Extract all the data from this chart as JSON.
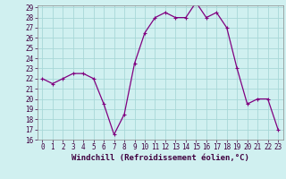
{
  "x": [
    0,
    1,
    2,
    3,
    4,
    5,
    6,
    7,
    8,
    9,
    10,
    11,
    12,
    13,
    14,
    15,
    16,
    17,
    18,
    19,
    20,
    21,
    22,
    23
  ],
  "y": [
    22,
    21.5,
    22,
    22.5,
    22.5,
    22,
    19.5,
    16.5,
    18.5,
    23.5,
    26.5,
    28,
    28.5,
    28,
    28,
    29.5,
    28,
    28.5,
    27,
    23,
    19.5,
    20,
    20,
    17
  ],
  "line_color": "#800080",
  "marker_color": "#800080",
  "bg_color": "#d0f0f0",
  "grid_color": "#a8d8d8",
  "xlabel": "Windchill (Refroidissement éolien,°C)",
  "ylim": [
    16,
    29
  ],
  "xlim": [
    -0.5,
    23.5
  ],
  "yticks": [
    16,
    17,
    18,
    19,
    20,
    21,
    22,
    23,
    24,
    25,
    26,
    27,
    28,
    29
  ],
  "xticks": [
    0,
    1,
    2,
    3,
    4,
    5,
    6,
    7,
    8,
    9,
    10,
    11,
    12,
    13,
    14,
    15,
    16,
    17,
    18,
    19,
    20,
    21,
    22,
    23
  ],
  "tick_fontsize": 5.5,
  "xlabel_fontsize": 6.5,
  "marker_size": 2.5,
  "linewidth": 0.9
}
